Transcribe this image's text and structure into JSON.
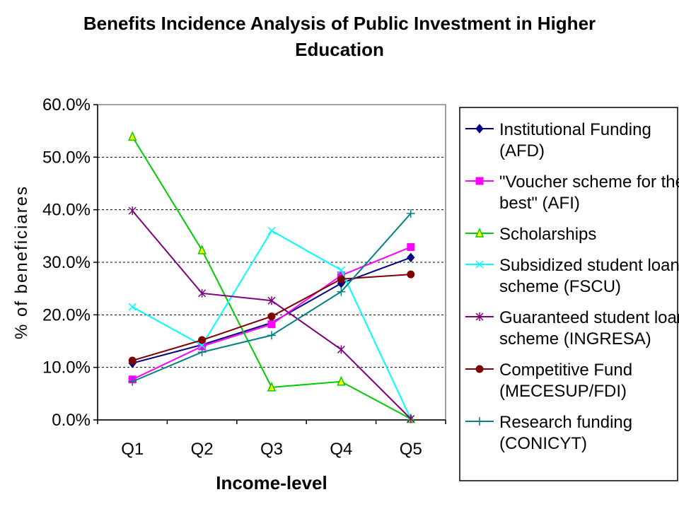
{
  "chart_data": {
    "type": "line",
    "title": [
      "Benefits Incidence Analysis of Public Investment in Higher",
      "Education"
    ],
    "xlabel": "Income-level",
    "ylabel": "% of beneficiares",
    "categories": [
      "Q1",
      "Q2",
      "Q3",
      "Q4",
      "Q5"
    ],
    "ylim": [
      0,
      60
    ],
    "yticks": [
      "0.0%",
      "10.0%",
      "20.0%",
      "30.0%",
      "40.0%",
      "50.0%",
      "60.0%"
    ],
    "grid": "horizontal dashed",
    "legend": "right",
    "series": [
      {
        "name": "Institutional Funding (AFD)",
        "legend_lines": [
          "Institutional Funding",
          "(AFD)"
        ],
        "color": "#000080",
        "marker": "diamond",
        "values": [
          10.8,
          14.3,
          18.5,
          26.0,
          30.9
        ]
      },
      {
        "name": "\"Voucher scheme for the best\" (AFI)",
        "legend_lines": [
          "\"Voucher scheme for the",
          "best\" (AFI)"
        ],
        "color": "#FF00FF",
        "marker": "square",
        "values": [
          7.7,
          14.0,
          18.2,
          27.5,
          32.9
        ]
      },
      {
        "name": "Scholarships",
        "legend_lines": [
          "Scholarships"
        ],
        "color": "#00CC00",
        "marker": "triangle",
        "values": [
          53.9,
          32.3,
          6.2,
          7.3,
          0.2
        ]
      },
      {
        "name": "Subsidized student loan scheme (FSCU)",
        "legend_lines": [
          "Subsidized student loan",
          "scheme (FSCU)"
        ],
        "color": "#00FFFF",
        "marker": "x",
        "values": [
          21.5,
          14.2,
          36.0,
          28.5,
          0.2
        ]
      },
      {
        "name": "Guaranteed student loan scheme (INGRESA)",
        "legend_lines": [
          "Guaranteed student loan",
          "scheme (INGRESA)"
        ],
        "color": "#800080",
        "marker": "star",
        "values": [
          39.8,
          24.1,
          22.7,
          13.4,
          0.2
        ]
      },
      {
        "name": "Competitive Fund (MECESUP/FDI)",
        "legend_lines": [
          "Competitive Fund",
          "(MECESUP/FDI)"
        ],
        "color": "#800000",
        "marker": "circle",
        "values": [
          11.3,
          15.2,
          19.7,
          26.8,
          27.7
        ]
      },
      {
        "name": "Research funding (CONICYT)",
        "legend_lines": [
          "Research funding",
          "(CONICYT)"
        ],
        "color": "#008080",
        "marker": "plus",
        "values": [
          7.3,
          12.9,
          16.1,
          24.4,
          39.3
        ]
      }
    ]
  }
}
